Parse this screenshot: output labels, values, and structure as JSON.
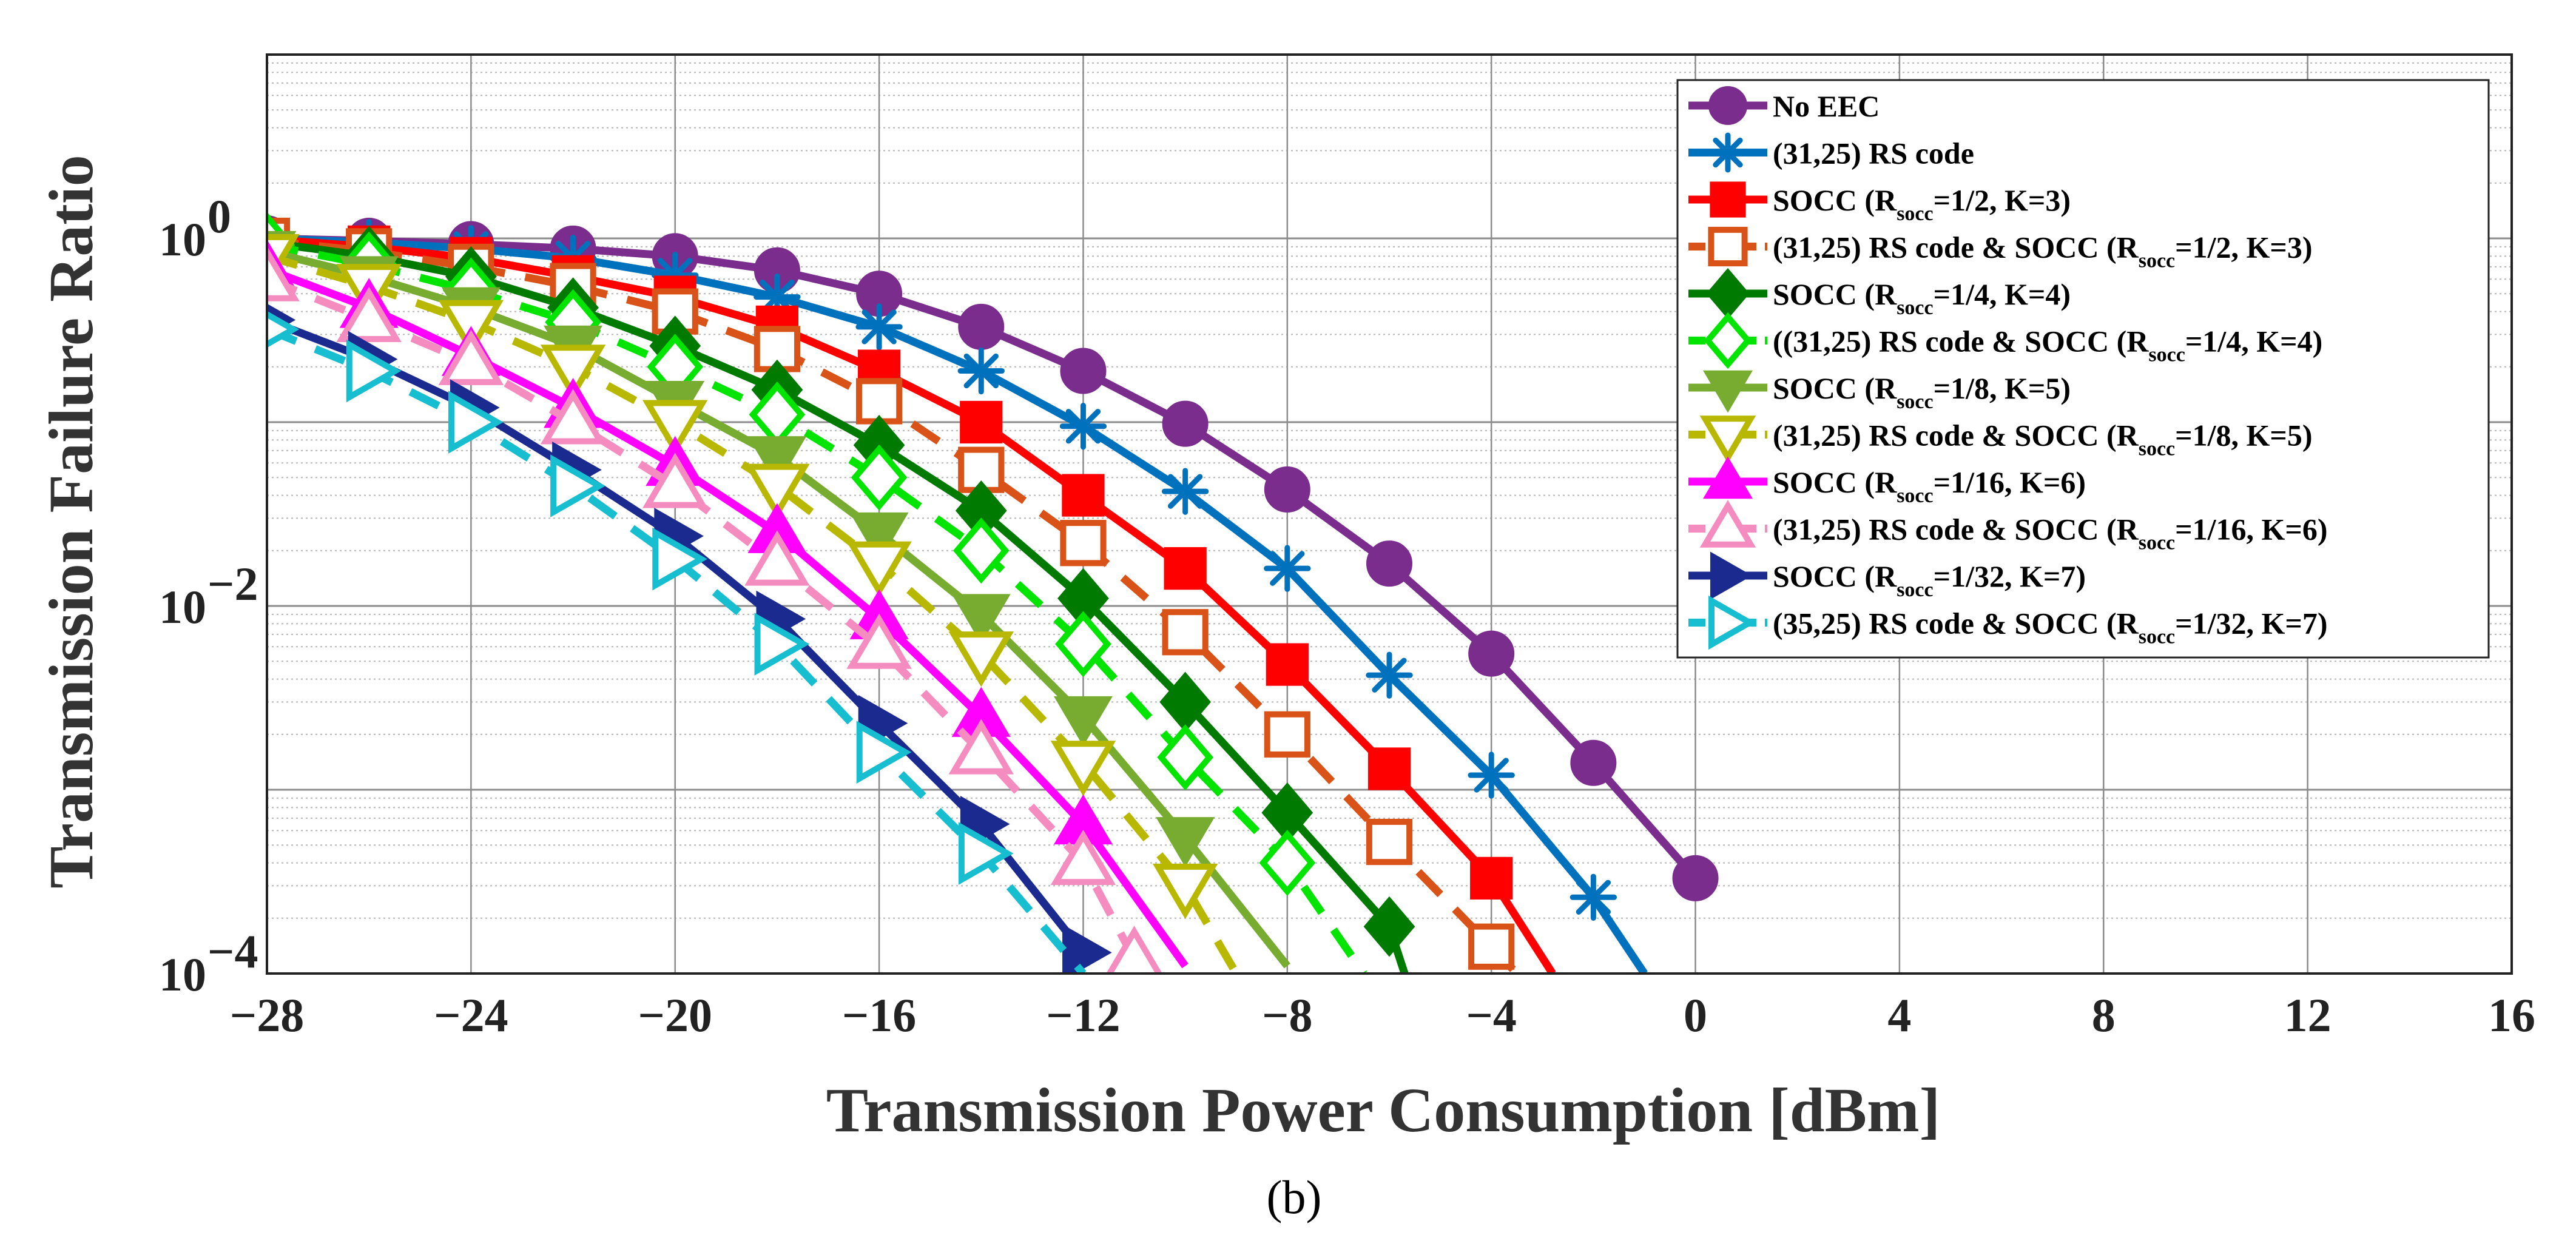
{
  "caption": "(b)",
  "chart_data": {
    "type": "line",
    "xlabel": "Transmission Power Consumption [dBm]",
    "ylabel": "Transmission Failure Ratio",
    "xlim": [
      -28,
      16
    ],
    "ylim": [
      0.0001,
      10
    ],
    "yscale": "log",
    "x_ticks": [
      "−28",
      "−24",
      "−20",
      "−16",
      "−12",
      "−8",
      "−4",
      "0",
      "4",
      "8",
      "12",
      "16"
    ],
    "y_ticks": [
      {
        "base": "10",
        "exp": "0",
        "value": 1
      },
      {
        "base": "10",
        "exp": "−2",
        "value": 0.01
      },
      {
        "base": "10",
        "exp": "−4",
        "value": 0.0001
      }
    ],
    "grid": true,
    "legend_position": "top-right",
    "series": [
      {
        "name": "No EEC",
        "name_parts": [
          "No EEC",
          "",
          ""
        ],
        "color": "#7b2d8e",
        "marker": "circle",
        "dashed": false,
        "x": [
          -28,
          -26,
          -24,
          -22,
          -20,
          -18,
          -16,
          -14,
          -12,
          -10,
          -8,
          -6,
          -4,
          -2,
          0
        ],
        "y": [
          1.0,
          0.97,
          0.93,
          0.88,
          0.8,
          0.67,
          0.5,
          0.33,
          0.19,
          0.098,
          0.043,
          0.017,
          0.0055,
          0.0014,
          0.00033
        ]
      },
      {
        "name": "(31,25) RS code",
        "name_parts": [
          "(31,25) RS code",
          "",
          ""
        ],
        "color": "#0072bd",
        "marker": "asterisk",
        "dashed": false,
        "x": [
          -28,
          -26,
          -24,
          -22,
          -20,
          -18,
          -16,
          -14,
          -12,
          -10,
          -8,
          -6,
          -4,
          -2,
          -1
        ],
        "y": [
          1.0,
          0.95,
          0.88,
          0.78,
          0.63,
          0.48,
          0.33,
          0.19,
          0.095,
          0.042,
          0.016,
          0.0042,
          0.0012,
          0.00026,
          0.0001
        ]
      },
      {
        "name": "SOCC (Rsocc=1/2, K=3)",
        "name_parts": [
          "SOCC (R",
          "socc",
          "=1/2, K=3)"
        ],
        "color": "#ff0000",
        "marker": "square",
        "dashed": false,
        "x": [
          -28,
          -26,
          -24,
          -22,
          -20,
          -18,
          -16,
          -14,
          -12,
          -10,
          -8,
          -6,
          -4,
          -2.8
        ],
        "y": [
          0.99,
          0.9,
          0.78,
          0.62,
          0.48,
          0.33,
          0.19,
          0.1,
          0.04,
          0.016,
          0.0048,
          0.0013,
          0.00033,
          0.0001
        ]
      },
      {
        "name": "(31,25) RS code & SOCC (Rsocc=1/2, K=3)",
        "name_parts": [
          "(31,25) RS code & SOCC (R",
          "socc",
          "=1/2, K=3)"
        ],
        "color": "#d95319",
        "marker": "square-open",
        "dashed": true,
        "x": [
          -28,
          -26,
          -24,
          -22,
          -20,
          -18,
          -16,
          -14,
          -12,
          -10,
          -8,
          -6,
          -4,
          -3.5
        ],
        "y": [
          0.97,
          0.85,
          0.7,
          0.55,
          0.4,
          0.25,
          0.13,
          0.055,
          0.022,
          0.0072,
          0.002,
          0.00052,
          0.00014,
          0.0001
        ]
      },
      {
        "name": "SOCC (Rsocc=1/4, K=4)",
        "name_parts": [
          "SOCC (R",
          "socc",
          "=1/4, K=4)"
        ],
        "color": "#007a00",
        "marker": "diamond",
        "dashed": false,
        "x": [
          -28,
          -26,
          -24,
          -22,
          -20,
          -18,
          -16,
          -14,
          -12,
          -10,
          -8,
          -6,
          -5.7
        ],
        "y": [
          0.95,
          0.8,
          0.62,
          0.42,
          0.26,
          0.15,
          0.075,
          0.033,
          0.011,
          0.003,
          0.00075,
          0.00018,
          0.0001
        ]
      },
      {
        "name": "((31,25) RS code & SOCC (Rsocc=1/4, K=4)",
        "name_parts": [
          "((31,25) RS code & SOCC (R",
          "socc",
          "=1/4, K=4)"
        ],
        "color": "#00e400",
        "marker": "diamond-open",
        "dashed": true,
        "x": [
          -28,
          -26,
          -24,
          -22,
          -20,
          -18,
          -16,
          -14,
          -12,
          -10,
          -8,
          -6.5
        ],
        "y": [
          0.92,
          0.72,
          0.52,
          0.35,
          0.2,
          0.11,
          0.05,
          0.02,
          0.0062,
          0.0015,
          0.0004,
          0.0001
        ]
      },
      {
        "name": "SOCC (Rsocc=1/8, K=5)",
        "name_parts": [
          "SOCC (R",
          "socc",
          "=1/8, K=5)"
        ],
        "color": "#77ac30",
        "marker": "triangle-down",
        "dashed": false,
        "x": [
          -28,
          -26,
          -24,
          -22,
          -20,
          -18,
          -16,
          -14,
          -12,
          -10,
          -8
        ],
        "y": [
          0.85,
          0.62,
          0.42,
          0.26,
          0.13,
          0.065,
          0.025,
          0.009,
          0.0025,
          0.00055,
          0.00011
        ]
      },
      {
        "name": "(31,25) RS code & SOCC (Rsocc=1/8, K=5)",
        "name_parts": [
          "(31,25) RS code & SOCC (R",
          "socc",
          "=1/8, K=5)"
        ],
        "color": "#b8b800",
        "marker": "triangle-down-open",
        "dashed": true,
        "x": [
          -28,
          -26,
          -24,
          -22,
          -20,
          -18,
          -16,
          -14,
          -12,
          -10,
          -9
        ],
        "y": [
          0.8,
          0.55,
          0.35,
          0.2,
          0.1,
          0.045,
          0.017,
          0.0055,
          0.0014,
          0.0003,
          0.0001
        ]
      },
      {
        "name": "SOCC (Rsocc=1/16, K=6)",
        "name_parts": [
          "SOCC (R",
          "socc",
          "=1/16, K=6)"
        ],
        "color": "#ff00ff",
        "marker": "triangle-up",
        "dashed": false,
        "x": [
          -28,
          -26,
          -24,
          -22,
          -20,
          -18,
          -16,
          -14,
          -12,
          -10
        ],
        "y": [
          0.68,
          0.42,
          0.23,
          0.12,
          0.058,
          0.025,
          0.0085,
          0.0025,
          0.00065,
          0.00011
        ]
      },
      {
        "name": "(31,25) RS code & SOCC (Rsocc=1/16, K=6)",
        "name_parts": [
          "(31,25) RS code & SOCC (R",
          "socc",
          "=1/16, K=6)"
        ],
        "color": "#f48cc0",
        "marker": "triangle-up-open",
        "dashed": true,
        "x": [
          -28,
          -26,
          -24,
          -22,
          -20,
          -18,
          -16,
          -14,
          -12,
          -11
        ],
        "y": [
          0.6,
          0.36,
          0.21,
          0.1,
          0.045,
          0.017,
          0.006,
          0.0016,
          0.0004,
          0.00012
        ]
      },
      {
        "name": "SOCC (Rsocc=1/32, K=7)",
        "name_parts": [
          "SOCC (R",
          "socc",
          "=1/32, K=7)"
        ],
        "color": "#1b2a8f",
        "marker": "triangle-right",
        "dashed": false,
        "x": [
          -28,
          -26,
          -24,
          -22,
          -20,
          -18,
          -16,
          -14,
          -12
        ],
        "y": [
          0.36,
          0.22,
          0.12,
          0.055,
          0.024,
          0.0085,
          0.0023,
          0.00065,
          0.00013
        ]
      },
      {
        "name": "(35,25) RS code & SOCC (Rsocc=1/32, K=7)",
        "name_parts": [
          "(35,25) RS code & SOCC (R",
          "socc",
          "=1/32, K=7)"
        ],
        "color": "#17becf",
        "marker": "triangle-right-open",
        "dashed": true,
        "x": [
          -28,
          -26,
          -24,
          -22,
          -20,
          -18,
          -16,
          -14,
          -12
        ],
        "y": [
          0.32,
          0.19,
          0.1,
          0.045,
          0.018,
          0.0062,
          0.0016,
          0.00045,
          0.0001
        ]
      }
    ]
  }
}
